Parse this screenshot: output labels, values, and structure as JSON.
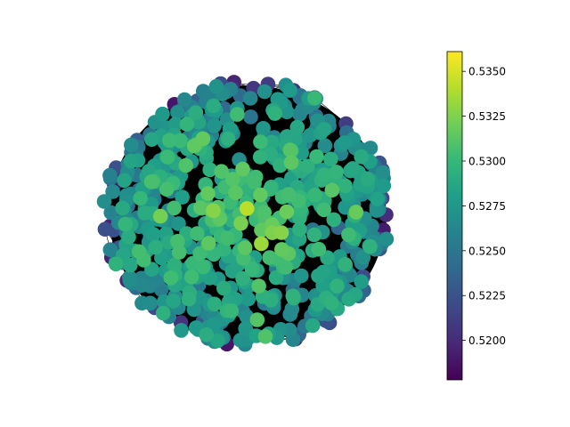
{
  "colorbar": {
    "colormap": "viridis",
    "vmin": 0.5178,
    "vmax": 0.5361,
    "ticks": [
      {
        "value": 0.52,
        "label": "0.5200"
      },
      {
        "value": 0.5225,
        "label": "0.5225"
      },
      {
        "value": 0.525,
        "label": "0.5250"
      },
      {
        "value": 0.5275,
        "label": "0.5275"
      },
      {
        "value": 0.53,
        "label": "0.5300"
      },
      {
        "value": 0.5325,
        "label": "0.5325"
      },
      {
        "value": 0.535,
        "label": "0.5350"
      }
    ]
  },
  "graph": {
    "edge_color": "#000000",
    "node_count": 700
  },
  "colors": {
    "viridis": [
      "#440154",
      "#482878",
      "#3e4989",
      "#31688e",
      "#26828e",
      "#1f9e89",
      "#35b779",
      "#6ece58",
      "#b5de2b",
      "#fde725"
    ]
  }
}
